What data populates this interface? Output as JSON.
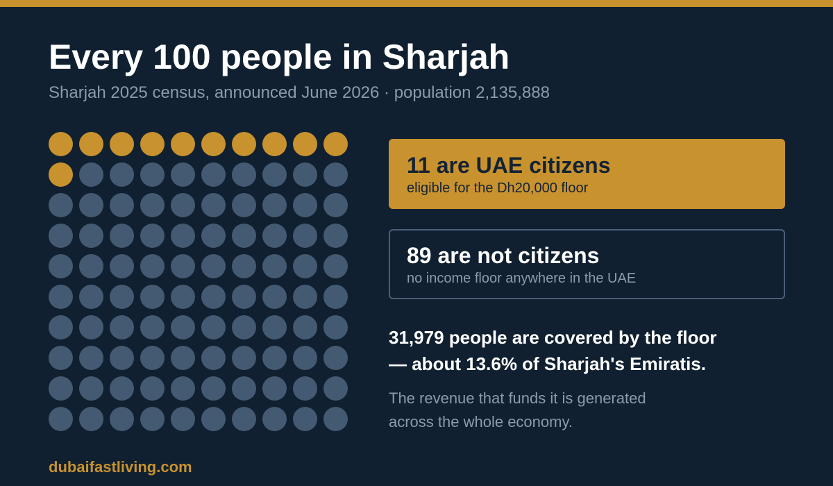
{
  "header": {
    "title": "Every 100 people in Sharjah",
    "subtitle": "Sharjah 2025 census, announced June 2026 · population 2,135,888"
  },
  "chart_data": {
    "type": "waffle",
    "total": 100,
    "columns": 10,
    "rows": 10,
    "series": [
      {
        "name": "11 are UAE citizens",
        "value": 11,
        "color": "#c8922e"
      },
      {
        "name": "89 are not citizens",
        "value": 89,
        "color": "#435a72"
      }
    ]
  },
  "cards": {
    "citizens": {
      "headline": "11 are UAE citizens",
      "detail": "eligible for the Dh20,000 floor"
    },
    "non_citizens": {
      "headline": "89 are not citizens",
      "detail": "no income floor anywhere in the UAE"
    }
  },
  "highlight": {
    "line1": "31,979 people are covered by the floor",
    "line2": "— about 13.6% of Sharjah's Emiratis."
  },
  "note": {
    "line1": "The revenue that funds it is generated",
    "line2": "across the whole economy."
  },
  "footer": {
    "source": "dubaifastliving.com"
  },
  "colors": {
    "background": "#102030",
    "accent": "#c8922e",
    "inactive_dot": "#435a72"
  }
}
